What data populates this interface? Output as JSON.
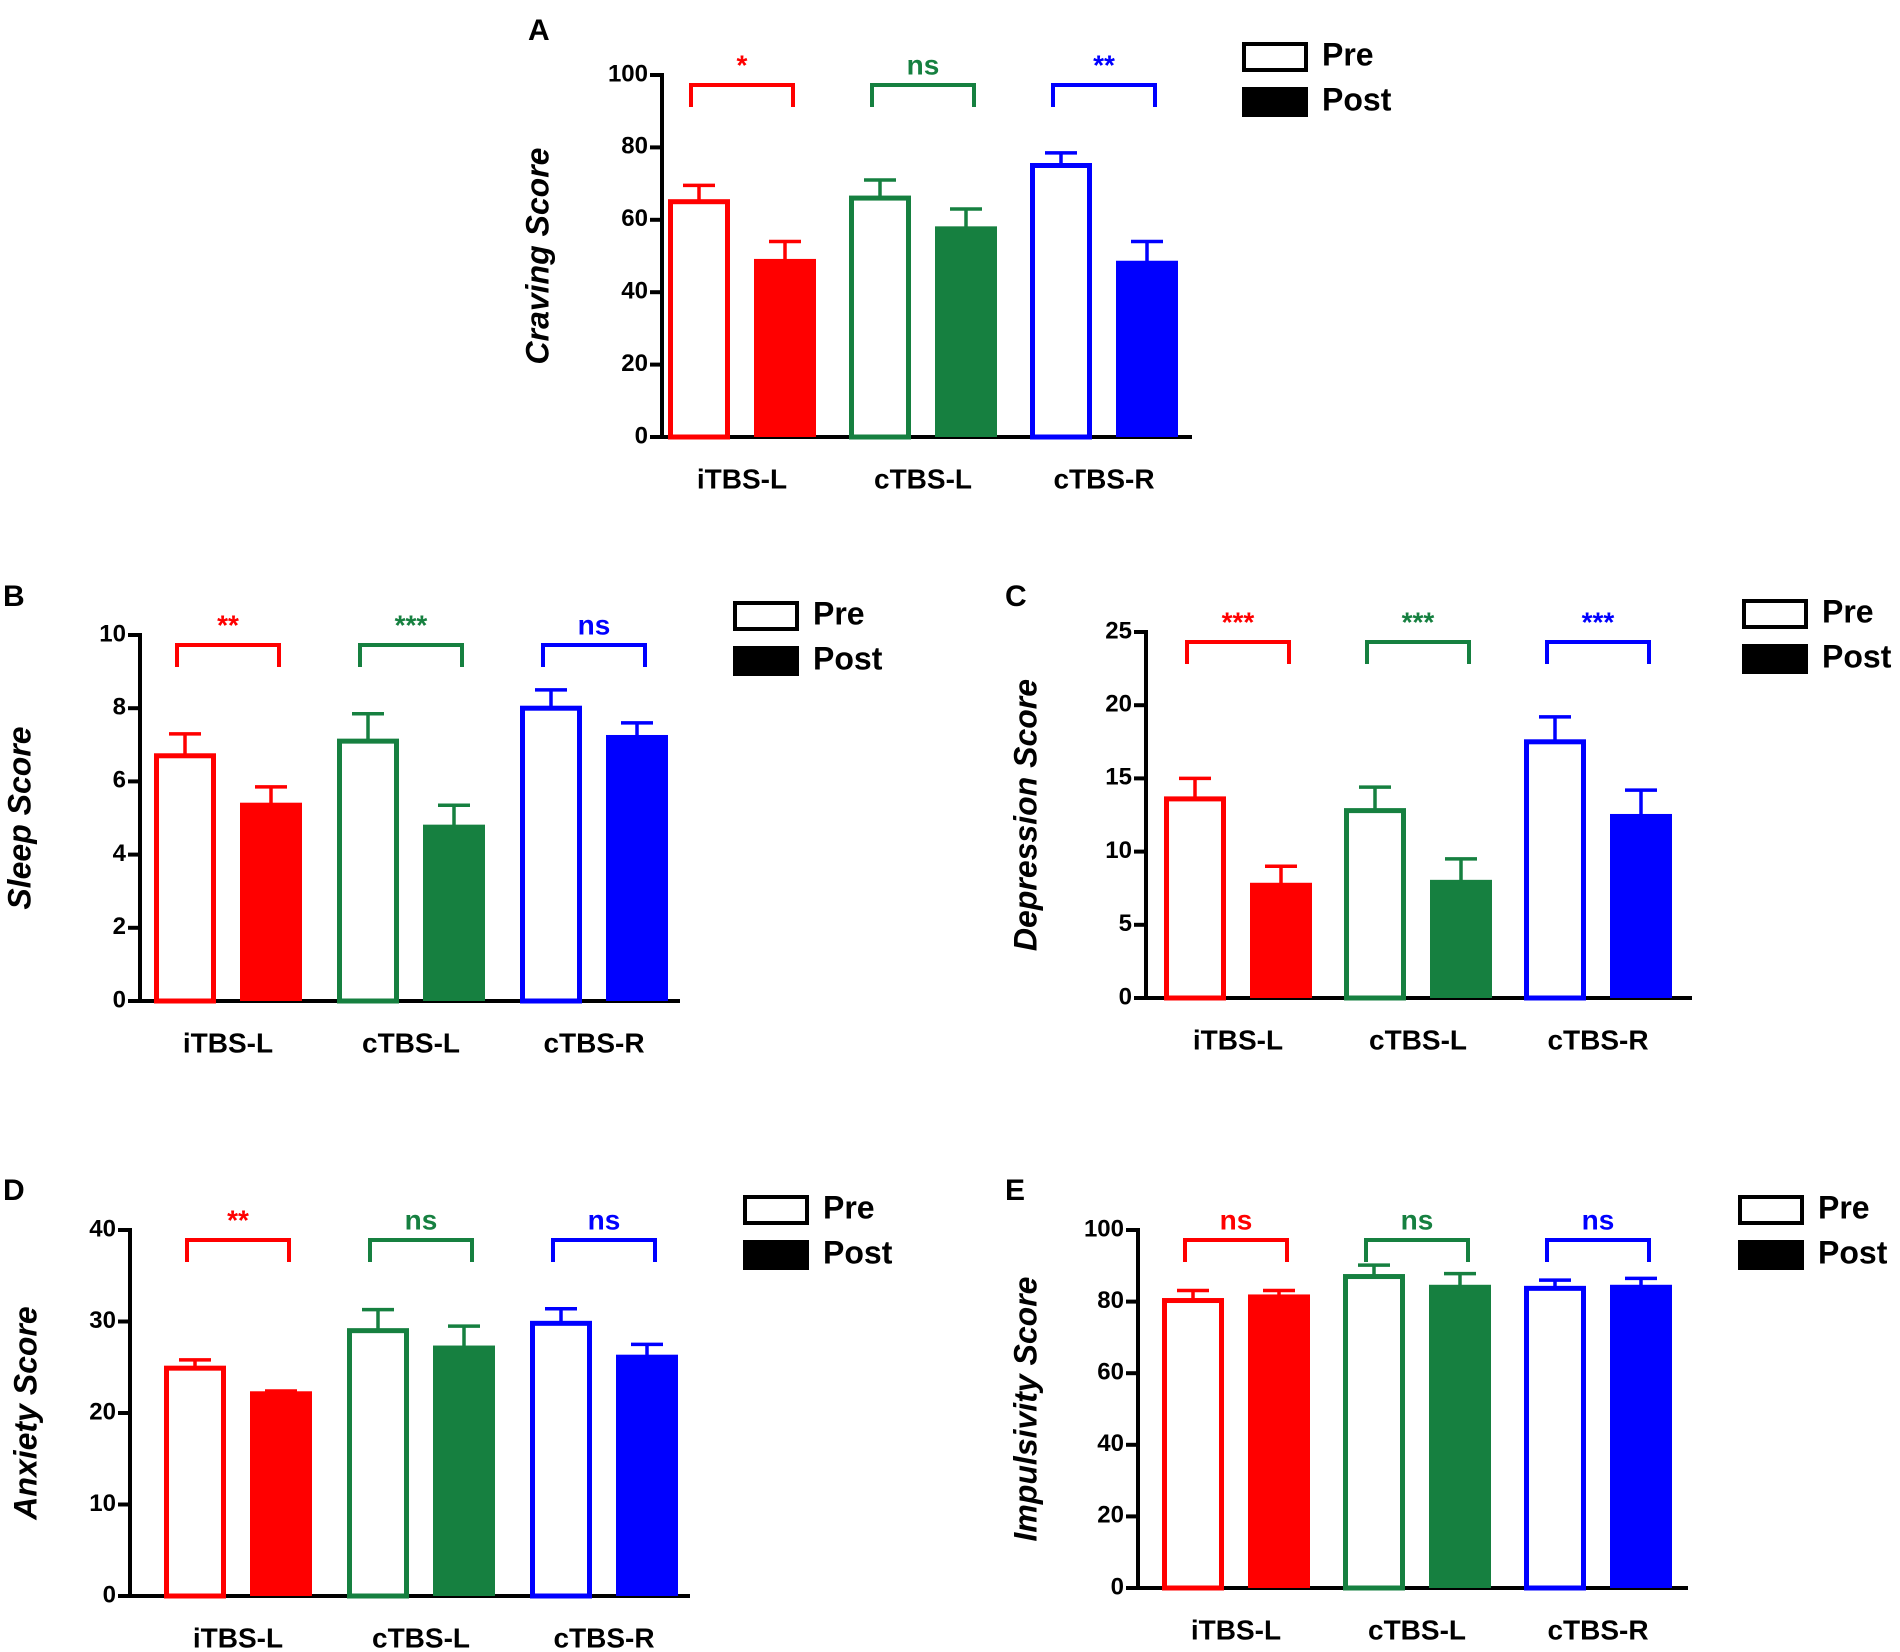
{
  "chart_data": [
    {
      "panel": "A",
      "type": "bar",
      "ylabel": "Craving Score",
      "categories": [
        "iTBS-L",
        "cTBS-L",
        "cTBS-R"
      ],
      "colors": [
        "#ff0000",
        "#168040",
        "#0000ff"
      ],
      "ylim": [
        0,
        100
      ],
      "yticks": [
        0,
        20,
        40,
        60,
        80,
        100
      ],
      "series": [
        {
          "name": "Pre",
          "style": "outline",
          "values": [
            65,
            66,
            75
          ],
          "errors": [
            4.5,
            5,
            3.5
          ]
        },
        {
          "name": "Post",
          "style": "filled",
          "values": [
            48.5,
            57.5,
            48
          ],
          "errors": [
            5.5,
            5.5,
            6
          ]
        }
      ],
      "significance": [
        "*",
        "ns",
        "**"
      ],
      "legend": [
        "Pre",
        "Post"
      ]
    },
    {
      "panel": "B",
      "type": "bar",
      "ylabel": "Sleep Score",
      "categories": [
        "iTBS-L",
        "cTBS-L",
        "cTBS-R"
      ],
      "colors": [
        "#ff0000",
        "#168040",
        "#0000ff"
      ],
      "ylim": [
        0,
        10
      ],
      "yticks": [
        0,
        2,
        4,
        6,
        8,
        10
      ],
      "series": [
        {
          "name": "Pre",
          "style": "outline",
          "values": [
            6.7,
            7.1,
            8.0
          ],
          "errors": [
            0.6,
            0.75,
            0.5
          ]
        },
        {
          "name": "Post",
          "style": "filled",
          "values": [
            5.35,
            4.75,
            7.2
          ],
          "errors": [
            0.5,
            0.6,
            0.4
          ]
        }
      ],
      "significance": [
        "**",
        "***",
        "ns"
      ],
      "legend": [
        "Pre",
        "Post"
      ]
    },
    {
      "panel": "C",
      "type": "bar",
      "ylabel": "Depression Score",
      "categories": [
        "iTBS-L",
        "cTBS-L",
        "cTBS-R"
      ],
      "colors": [
        "#ff0000",
        "#168040",
        "#0000ff"
      ],
      "ylim": [
        0,
        25
      ],
      "yticks": [
        0,
        5,
        10,
        15,
        20,
        25
      ],
      "series": [
        {
          "name": "Pre",
          "style": "outline",
          "values": [
            13.6,
            12.8,
            17.5
          ],
          "errors": [
            1.4,
            1.6,
            1.7
          ]
        },
        {
          "name": "Post",
          "style": "filled",
          "values": [
            7.7,
            7.9,
            12.4
          ],
          "errors": [
            1.3,
            1.6,
            1.8
          ]
        }
      ],
      "significance": [
        "***",
        "***",
        "***"
      ],
      "legend": [
        "Pre",
        "Post"
      ]
    },
    {
      "panel": "D",
      "type": "bar",
      "ylabel": "Anxiety Score",
      "categories": [
        "iTBS-L",
        "cTBS-L",
        "cTBS-R"
      ],
      "colors": [
        "#ff0000",
        "#168040",
        "#0000ff"
      ],
      "ylim": [
        0,
        40
      ],
      "yticks": [
        0,
        10,
        20,
        30,
        40
      ],
      "series": [
        {
          "name": "Pre",
          "style": "outline",
          "values": [
            24.9,
            29.0,
            29.8
          ],
          "errors": [
            0.9,
            2.3,
            1.6
          ]
        },
        {
          "name": "Post",
          "style": "filled",
          "values": [
            22.1,
            27.1,
            26.1
          ],
          "errors": [
            0.3,
            2.4,
            1.4
          ]
        }
      ],
      "significance": [
        "**",
        "ns",
        "ns"
      ],
      "legend": [
        "Pre",
        "Post"
      ]
    },
    {
      "panel": "E",
      "type": "bar",
      "ylabel": "Impulsivity Score",
      "categories": [
        "iTBS-L",
        "cTBS-L",
        "cTBS-R"
      ],
      "colors": [
        "#ff0000",
        "#168040",
        "#0000ff"
      ],
      "ylim": [
        0,
        100
      ],
      "yticks": [
        0,
        20,
        40,
        60,
        80,
        100
      ],
      "series": [
        {
          "name": "Pre",
          "style": "outline",
          "values": [
            80.3,
            87.0,
            83.7
          ],
          "errors": [
            2.8,
            3.2,
            2.3
          ]
        },
        {
          "name": "Post",
          "style": "filled",
          "values": [
            81.3,
            84.0,
            84.0
          ],
          "errors": [
            1.8,
            3.8,
            2.5
          ]
        }
      ],
      "significance": [
        "ns",
        "ns",
        "ns"
      ],
      "legend": [
        "Pre",
        "Post"
      ]
    }
  ]
}
